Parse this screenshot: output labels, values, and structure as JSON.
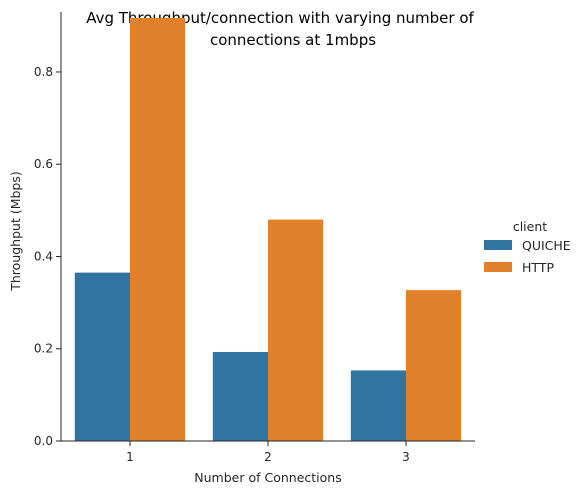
{
  "chart_data": {
    "type": "bar",
    "title_lines": [
      "Avg Throughput/connection with varying number of",
      "connections at 1mbps"
    ],
    "xlabel": "Number of Connections",
    "ylabel": "Throughput (Mbps)",
    "categories": [
      "1",
      "2",
      "3"
    ],
    "ylim": [
      0,
      0.93
    ],
    "yticks": [
      "0.0",
      "0.2",
      "0.4",
      "0.6",
      "0.8"
    ],
    "series": [
      {
        "name": "QUICHE",
        "color": "#3274a1",
        "values": [
          0.365,
          0.193,
          0.153
        ]
      },
      {
        "name": "HTTP",
        "color": "#e1812c",
        "values": [
          0.917,
          0.48,
          0.327
        ]
      }
    ],
    "legend": {
      "title": "client",
      "placement": "right"
    },
    "grid": false
  }
}
